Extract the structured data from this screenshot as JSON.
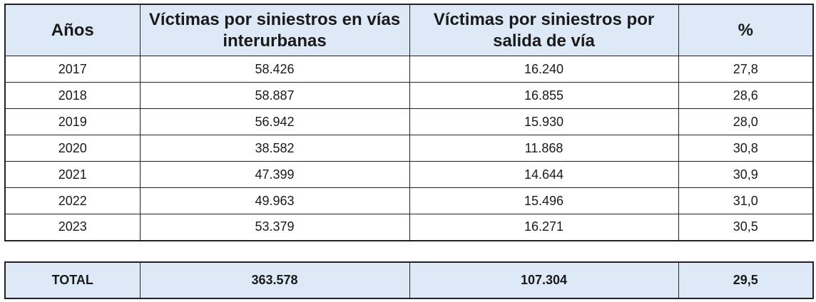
{
  "table": {
    "headers": {
      "year": "Años",
      "interurban": "Víctimas por siniestros en vías interurbanas",
      "road_exit": "Víctimas por siniestros por salida de vía",
      "percent": "%"
    },
    "rows": [
      {
        "year": "2017",
        "interurban": "58.426",
        "road_exit": "16.240",
        "percent": "27,8"
      },
      {
        "year": "2018",
        "interurban": "58.887",
        "road_exit": "16.855",
        "percent": "28,6"
      },
      {
        "year": "2019",
        "interurban": "56.942",
        "road_exit": "15.930",
        "percent": "28,0"
      },
      {
        "year": "2020",
        "interurban": "38.582",
        "road_exit": "11.868",
        "percent": "30,8"
      },
      {
        "year": "2021",
        "interurban": "47.399",
        "road_exit": "14.644",
        "percent": "30,9"
      },
      {
        "year": "2022",
        "interurban": "49.963",
        "road_exit": "15.496",
        "percent": "31,0"
      },
      {
        "year": "2023",
        "interurban": "53.379",
        "road_exit": "16.271",
        "percent": "30,5"
      }
    ],
    "total": {
      "label": "TOTAL",
      "interurban": "363.578",
      "road_exit": "107.304",
      "percent": "29,5"
    }
  },
  "colors": {
    "header_background": "#dde9f6",
    "border": "#222222",
    "text": "#1a1a1a"
  }
}
